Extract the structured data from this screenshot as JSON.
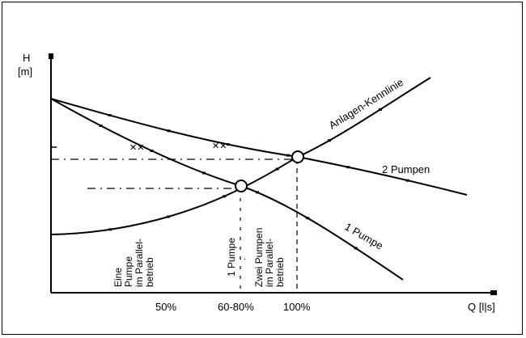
{
  "chart_data": {
    "type": "line",
    "title": "",
    "ylabel": "H",
    "ylabel_unit": "[m]",
    "xlabel": "Q [l|s]",
    "x_ticks": [
      "50%",
      "60-80%",
      "100%"
    ],
    "grid": false,
    "series": [
      {
        "name": "Anlagen-Kennlinie",
        "points": [
          [
            0,
            28
          ],
          [
            20,
            32
          ],
          [
            40,
            40
          ],
          [
            60,
            50
          ],
          [
            80,
            65
          ],
          [
            100,
            80
          ],
          [
            120,
            98
          ],
          [
            140,
            120
          ],
          [
            155,
            140
          ]
        ]
      },
      {
        "name": "2 Pumpen",
        "points": [
          [
            0,
            115
          ],
          [
            20,
            108
          ],
          [
            40,
            102
          ],
          [
            60,
            95
          ],
          [
            80,
            88
          ],
          [
            100,
            82
          ],
          [
            120,
            76
          ],
          [
            140,
            70
          ],
          [
            168,
            62
          ]
        ]
      },
      {
        "name": "1 Pumpe",
        "points": [
          [
            0,
            115
          ],
          [
            20,
            100
          ],
          [
            40,
            88
          ],
          [
            60,
            77
          ],
          [
            80,
            64
          ],
          [
            100,
            50
          ],
          [
            120,
            35
          ],
          [
            140,
            18
          ],
          [
            152,
            6
          ]
        ]
      }
    ],
    "operating_points": [
      {
        "x": 100,
        "y": 82
      },
      {
        "x": 77,
        "y": 62
      }
    ],
    "annotations": [
      {
        "text": [
          "Eine",
          "Pumpe",
          "im Parallel-",
          "betrieb"
        ]
      },
      {
        "text": [
          "1 Pumpe",
          ":"
        ]
      },
      {
        "text": [
          "Zwei Pumpen",
          "im Parallel-",
          "betrieb"
        ]
      }
    ]
  }
}
